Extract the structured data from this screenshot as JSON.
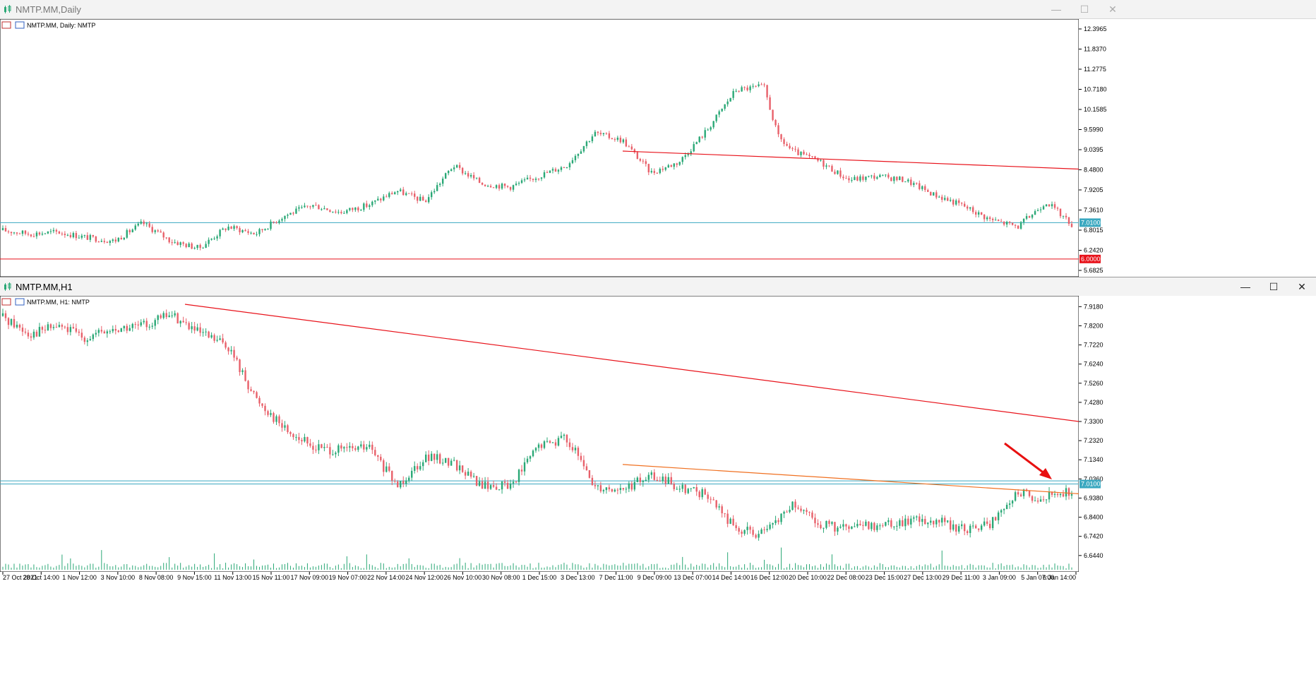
{
  "top_window": {
    "title": "NMTP.MM,Daily",
    "chart_header": "NMTP.MM, Daily:  NMTP",
    "y_ticks": [
      "12.3965",
      "11.8370",
      "11.2775",
      "10.7180",
      "10.1585",
      "9.5990",
      "9.0395",
      "8.4800",
      "7.9205",
      "7.3610",
      "6.8015",
      "6.2420",
      "5.6825"
    ],
    "price_tag_cyan": "7.0100",
    "price_tag_red": "6.0000"
  },
  "bottom_window": {
    "title": "NMTP.MM,H1",
    "chart_header": "NMTP.MM, H1:  NMTP",
    "y_ticks": [
      "7.9180",
      "7.8200",
      "7.7220",
      "7.6240",
      "7.5260",
      "7.4280",
      "7.3300",
      "7.2320",
      "7.1340",
      "7.0360",
      "6.9380",
      "6.8400",
      "6.7420",
      "6.6440"
    ],
    "price_tag_cyan": "7.0100",
    "x_ticks": [
      "27 Oct 2021",
      "28 Oct 14:00",
      "1 Nov 12:00",
      "3 Nov 10:00",
      "8 Nov 08:00",
      "9 Nov 15:00",
      "11 Nov 13:00",
      "15 Nov 11:00",
      "17 Nov 09:00",
      "19 Nov 07:00",
      "22 Nov 14:00",
      "24 Nov 12:00",
      "26 Nov 10:00",
      "30 Nov 08:00",
      "1 Dec 15:00",
      "3 Dec 13:00",
      "7 Dec 11:00",
      "9 Dec 09:00",
      "13 Dec 07:00",
      "14 Dec 14:00",
      "16 Dec 12:00",
      "20 Dec 10:00",
      "22 Dec 08:00",
      "23 Dec 15:00",
      "27 Dec 13:00",
      "29 Dec 11:00",
      "3 Jan 09:00",
      "5 Jan 07:00",
      "6 Jan 14:00"
    ]
  },
  "colors": {
    "bull": "#2aa876",
    "bear": "#e8606a",
    "trend": "#e8121a",
    "orange": "#f07020",
    "cyan": "#3aa8c0",
    "arrow": "#e81010"
  },
  "icons": [
    "chart-icon",
    "minimize-icon",
    "maximize-icon",
    "close-icon",
    "arrow-icon"
  ],
  "chart_data": [
    {
      "type": "line",
      "title": "NMTP.MM, Daily:  NMTP",
      "xlabel": "",
      "ylabel": "",
      "ylim": [
        5.6825,
        12.3965
      ],
      "series": [
        {
          "x": [
            0,
            10,
            20,
            30,
            40,
            50,
            60,
            70,
            80,
            90,
            100,
            110,
            120,
            130,
            140,
            150,
            160,
            170,
            180,
            190,
            200,
            210,
            220,
            230,
            240,
            250,
            260,
            270,
            275,
            280,
            290,
            300,
            310,
            320,
            330,
            340,
            350,
            360,
            370,
            380
          ],
          "values": [
            6.8,
            6.7,
            6.75,
            6.6,
            6.5,
            7.0,
            6.5,
            6.3,
            6.9,
            6.7,
            7.2,
            7.5,
            7.3,
            7.5,
            7.9,
            7.6,
            8.6,
            8.1,
            8.0,
            8.3,
            8.6,
            9.5,
            9.3,
            8.4,
            8.7,
            9.6,
            10.7,
            10.8,
            9.4,
            9.0,
            8.7,
            8.2,
            8.3,
            8.2,
            7.8,
            7.5,
            7.1,
            6.9,
            7.6,
            6.9
          ]
        }
      ],
      "trend_lines": [
        {
          "from": [
            220,
            9.0
          ],
          "to": [
            385,
            8.5
          ]
        }
      ],
      "horizontal_levels": [
        7.01,
        6.0
      ]
    },
    {
      "type": "line",
      "title": "NMTP.MM, H1:  NMTP",
      "xlabel": "",
      "ylabel": "",
      "ylim": [
        6.6,
        7.93
      ],
      "series": [
        {
          "x": [
            0,
            10,
            20,
            30,
            40,
            50,
            60,
            70,
            80,
            90,
            100,
            110,
            120,
            130,
            140,
            150,
            160,
            170,
            180,
            190,
            200,
            210,
            220,
            230,
            240,
            250,
            260,
            270,
            280,
            290,
            300,
            310,
            320,
            330,
            340,
            350,
            360,
            370,
            380
          ],
          "values": [
            7.87,
            7.78,
            7.82,
            7.76,
            7.8,
            7.82,
            7.88,
            7.78,
            7.72,
            7.45,
            7.3,
            7.2,
            7.18,
            7.2,
            7.0,
            7.15,
            7.12,
            7.0,
            7.0,
            7.2,
            7.25,
            7.0,
            6.98,
            7.05,
            7.0,
            6.95,
            6.78,
            6.75,
            6.9,
            6.8,
            6.78,
            6.8,
            6.82,
            6.83,
            6.78,
            6.8,
            6.96,
            6.94,
            6.98
          ]
        }
      ],
      "trend_lines": [
        {
          "from": [
            65,
            7.93
          ],
          "to": [
            385,
            7.33
          ]
        },
        {
          "from": [
            220,
            7.11
          ],
          "to": [
            385,
            6.96
          ]
        }
      ],
      "horizontal_levels": [
        7.01,
        7.026
      ]
    }
  ]
}
